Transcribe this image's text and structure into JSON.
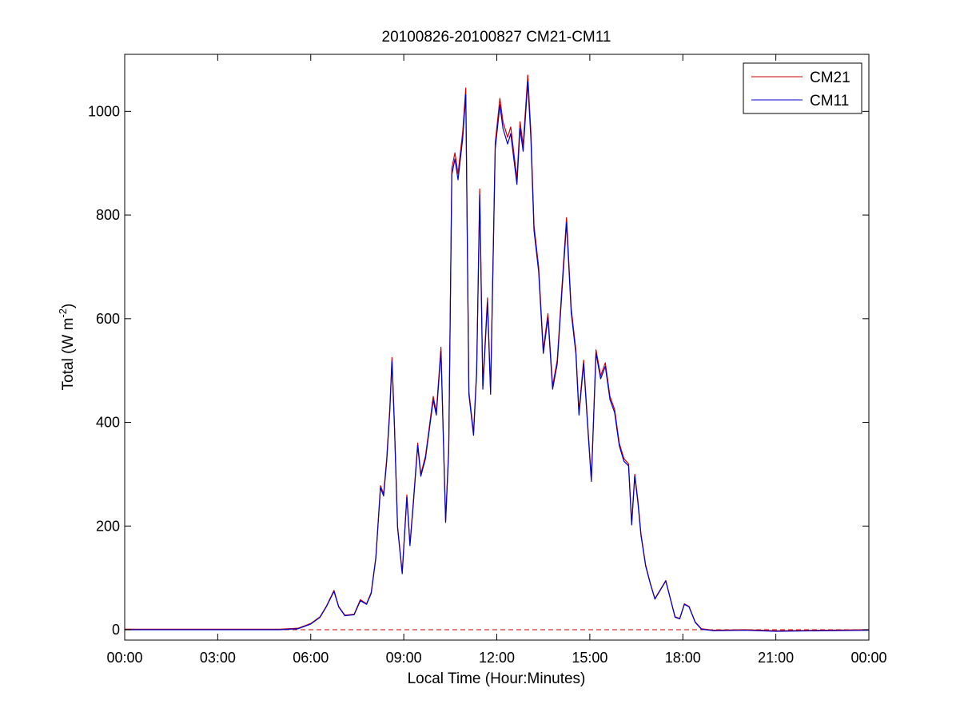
{
  "chart_data": {
    "type": "line",
    "title": "20100826-20100827 CM21-CM11",
    "xlabel": "Local Time (Hour:Minutes)",
    "ylabel": {
      "main": "Total (W m",
      "superscript": "-2",
      "close": ")"
    },
    "x_unit": "hours",
    "xlim": [
      0,
      24
    ],
    "ylim": [
      -20,
      1110
    ],
    "x_ticks": [
      0,
      3,
      6,
      9,
      12,
      15,
      18,
      21,
      24
    ],
    "x_tick_labels": [
      "00:00",
      "03:00",
      "06:00",
      "09:00",
      "12:00",
      "15:00",
      "18:00",
      "21:00",
      "00:00"
    ],
    "y_ticks": [
      0,
      200,
      400,
      600,
      800,
      1000
    ],
    "y_tick_labels": [
      "0",
      "200",
      "400",
      "600",
      "800",
      "1000"
    ],
    "grid": false,
    "legend_position": "top-right",
    "reference_line": {
      "y": 0,
      "color": "#cc0000",
      "style": "dashed"
    },
    "series": [
      {
        "name": "CM21",
        "color": "#cc0000",
        "x": [
          0,
          5.0,
          5.6,
          6.0,
          6.3,
          6.5,
          6.75,
          6.9,
          7.1,
          7.4,
          7.6,
          7.8,
          7.95,
          8.1,
          8.25,
          8.35,
          8.45,
          8.55,
          8.62,
          8.7,
          8.8,
          8.95,
          9.1,
          9.2,
          9.3,
          9.45,
          9.55,
          9.7,
          9.8,
          9.95,
          10.05,
          10.2,
          10.35,
          10.45,
          10.55,
          10.65,
          10.75,
          10.9,
          11.0,
          11.1,
          11.25,
          11.35,
          11.45,
          11.55,
          11.7,
          11.8,
          11.95,
          12.1,
          12.2,
          12.35,
          12.45,
          12.55,
          12.65,
          12.75,
          12.85,
          13.0,
          13.1,
          13.2,
          13.35,
          13.5,
          13.65,
          13.8,
          13.95,
          14.1,
          14.25,
          14.4,
          14.55,
          14.65,
          14.8,
          14.95,
          15.05,
          15.2,
          15.35,
          15.5,
          15.65,
          15.8,
          15.95,
          16.1,
          16.25,
          16.35,
          16.45,
          16.55,
          16.65,
          16.8,
          16.95,
          17.1,
          17.3,
          17.45,
          17.6,
          17.75,
          17.9,
          18.05,
          18.2,
          18.4,
          18.6,
          19.0,
          20.0,
          21.0,
          24.0
        ],
        "y": [
          1,
          1,
          3,
          12,
          25,
          45,
          76,
          45,
          28,
          30,
          58,
          50,
          72,
          140,
          278,
          262,
          330,
          428,
          525,
          395,
          200,
          110,
          260,
          165,
          240,
          360,
          300,
          335,
          380,
          450,
          420,
          545,
          210,
          350,
          890,
          920,
          880,
          960,
          1045,
          460,
          380,
          500,
          850,
          470,
          640,
          460,
          940,
          1025,
          980,
          950,
          970,
          920,
          870,
          980,
          935,
          1070,
          960,
          780,
          700,
          540,
          610,
          470,
          520,
          660,
          795,
          620,
          540,
          420,
          520,
          380,
          290,
          540,
          490,
          515,
          450,
          425,
          360,
          330,
          320,
          205,
          300,
          250,
          185,
          125,
          90,
          60,
          80,
          95,
          60,
          25,
          22,
          50,
          45,
          15,
          2,
          -1,
          0,
          -2,
          0
        ]
      },
      {
        "name": "CM11",
        "color": "#0000cc",
        "x": [
          0,
          5.0,
          5.6,
          6.0,
          6.3,
          6.5,
          6.75,
          6.9,
          7.1,
          7.4,
          7.6,
          7.8,
          7.95,
          8.1,
          8.25,
          8.35,
          8.45,
          8.55,
          8.62,
          8.7,
          8.8,
          8.95,
          9.1,
          9.2,
          9.3,
          9.45,
          9.55,
          9.7,
          9.8,
          9.95,
          10.05,
          10.2,
          10.35,
          10.45,
          10.55,
          10.65,
          10.75,
          10.9,
          11.0,
          11.1,
          11.25,
          11.35,
          11.45,
          11.55,
          11.7,
          11.8,
          11.95,
          12.1,
          12.2,
          12.35,
          12.45,
          12.55,
          12.65,
          12.75,
          12.85,
          13.0,
          13.1,
          13.2,
          13.35,
          13.5,
          13.65,
          13.8,
          13.95,
          14.1,
          14.25,
          14.4,
          14.55,
          14.65,
          14.8,
          14.95,
          15.05,
          15.2,
          15.35,
          15.5,
          15.65,
          15.8,
          15.95,
          16.1,
          16.25,
          16.35,
          16.45,
          16.55,
          16.65,
          16.8,
          16.95,
          17.1,
          17.3,
          17.45,
          17.6,
          17.75,
          17.9,
          18.05,
          18.2,
          18.4,
          18.6,
          19.0,
          20.0,
          21.0,
          24.0
        ],
        "y": [
          0,
          0,
          2,
          11,
          24,
          44,
          74,
          44,
          27,
          29,
          56,
          49,
          70,
          138,
          274,
          258,
          325,
          422,
          518,
          390,
          197,
          108,
          256,
          162,
          236,
          355,
          296,
          330,
          375,
          443,
          414,
          537,
          207,
          345,
          878,
          908,
          868,
          947,
          1032,
          454,
          375,
          494,
          839,
          464,
          632,
          454,
          928,
          1012,
          967,
          937,
          957,
          908,
          859,
          967,
          923,
          1057,
          947,
          770,
          691,
          533,
          602,
          464,
          513,
          651,
          785,
          612,
          533,
          414,
          513,
          375,
          286,
          533,
          484,
          508,
          444,
          419,
          355,
          325,
          316,
          202,
          296,
          246,
          182,
          123,
          89,
          59,
          79,
          94,
          59,
          24,
          21,
          49,
          44,
          14,
          1,
          -2,
          -1,
          -3,
          -1
        ]
      }
    ]
  }
}
